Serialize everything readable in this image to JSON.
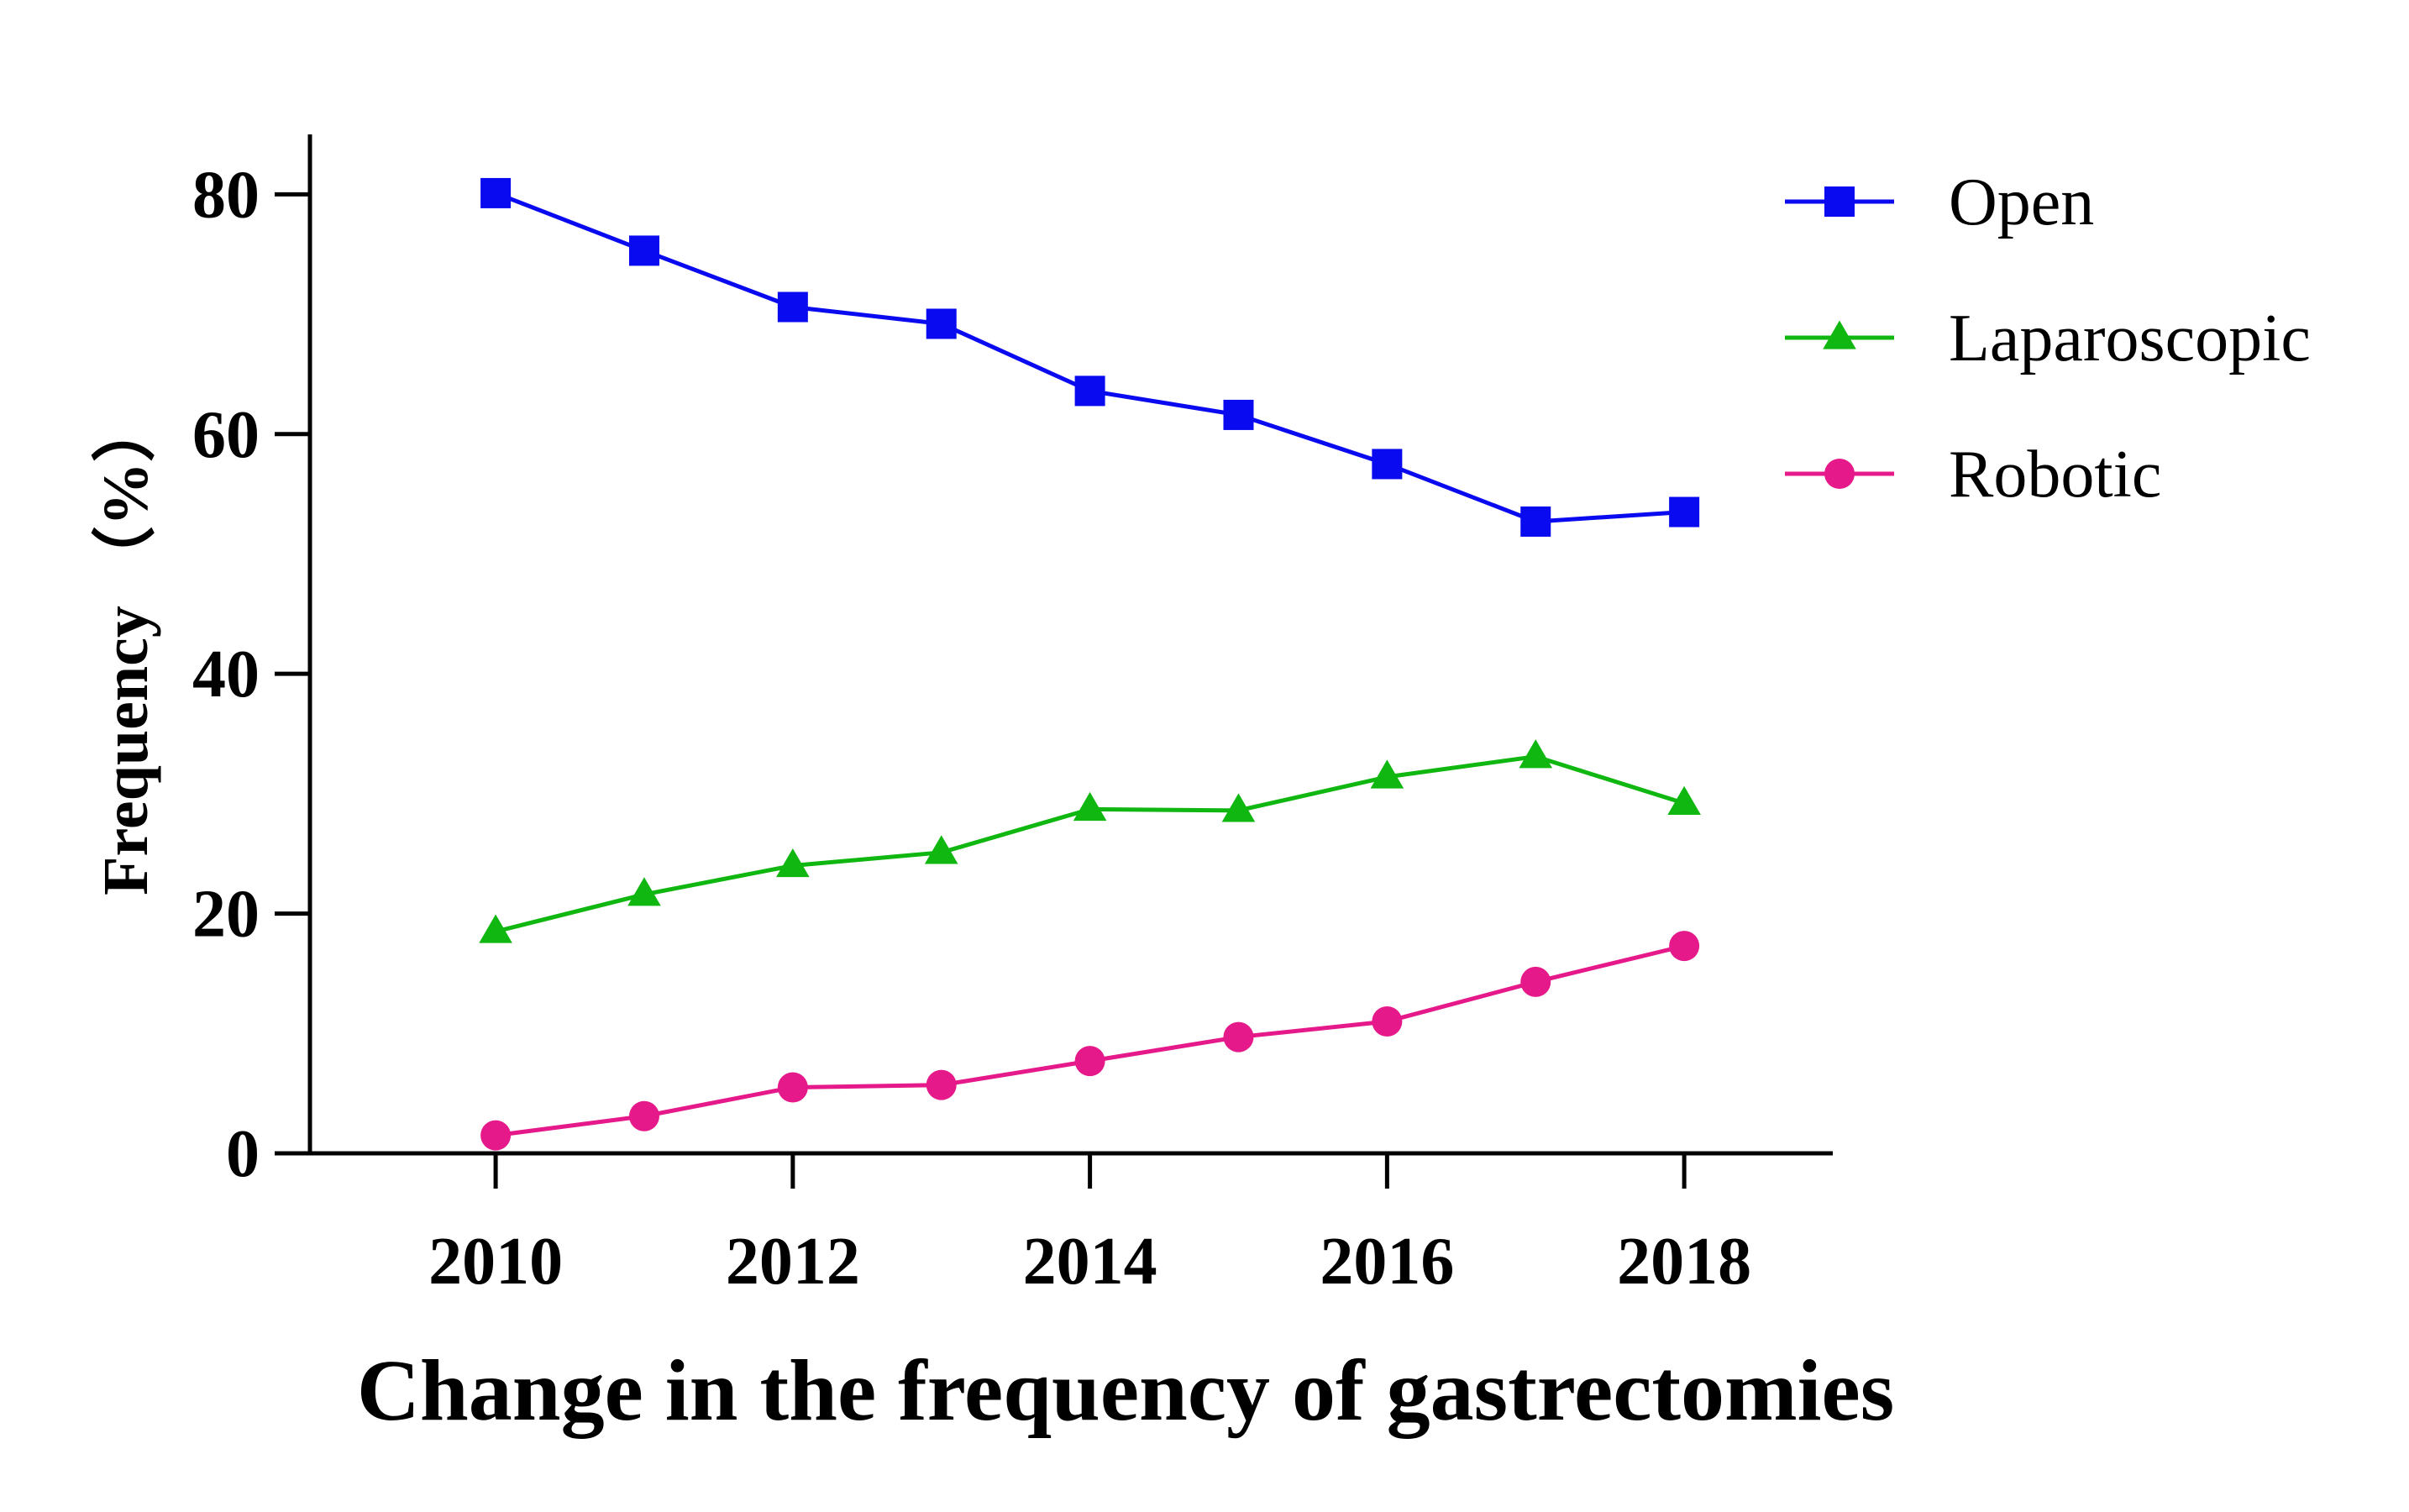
{
  "chart_data": {
    "type": "line",
    "title": "",
    "xlabel": "Change in the frequency of gastrectomies",
    "ylabel": "Frequency （%）",
    "x": [
      2010,
      2011,
      2012,
      2013,
      2014,
      2015,
      2016,
      2017,
      2018
    ],
    "xlim": [
      2008.75,
      2019
    ],
    "ylim": [
      0,
      85
    ],
    "xticks": [
      2010,
      2012,
      2014,
      2016,
      2018
    ],
    "xtick_labels": [
      "2010",
      "2012",
      "2014",
      "2016",
      "2018"
    ],
    "yticks": [
      0,
      20,
      40,
      60,
      80
    ],
    "ytick_labels": [
      "0",
      "20",
      "40",
      "60",
      "80"
    ],
    "grid": false,
    "legend": "top-right",
    "series": [
      {
        "name": "Open",
        "color": "#0a0af0",
        "marker": "square",
        "values": [
          80.1,
          75.3,
          70.6,
          69.2,
          63.6,
          61.6,
          57.5,
          52.7,
          53.5
        ]
      },
      {
        "name": "Laparoscopic",
        "color": "#10b710",
        "marker": "triangle",
        "values": [
          18.5,
          21.6,
          24.0,
          25.1,
          28.7,
          28.6,
          31.4,
          33.1,
          29.2
        ]
      },
      {
        "name": "Robotic",
        "color": "#e5198a",
        "marker": "circle",
        "values": [
          1.5,
          3.1,
          5.5,
          5.7,
          7.7,
          9.7,
          11.0,
          14.3,
          17.3
        ]
      }
    ]
  }
}
